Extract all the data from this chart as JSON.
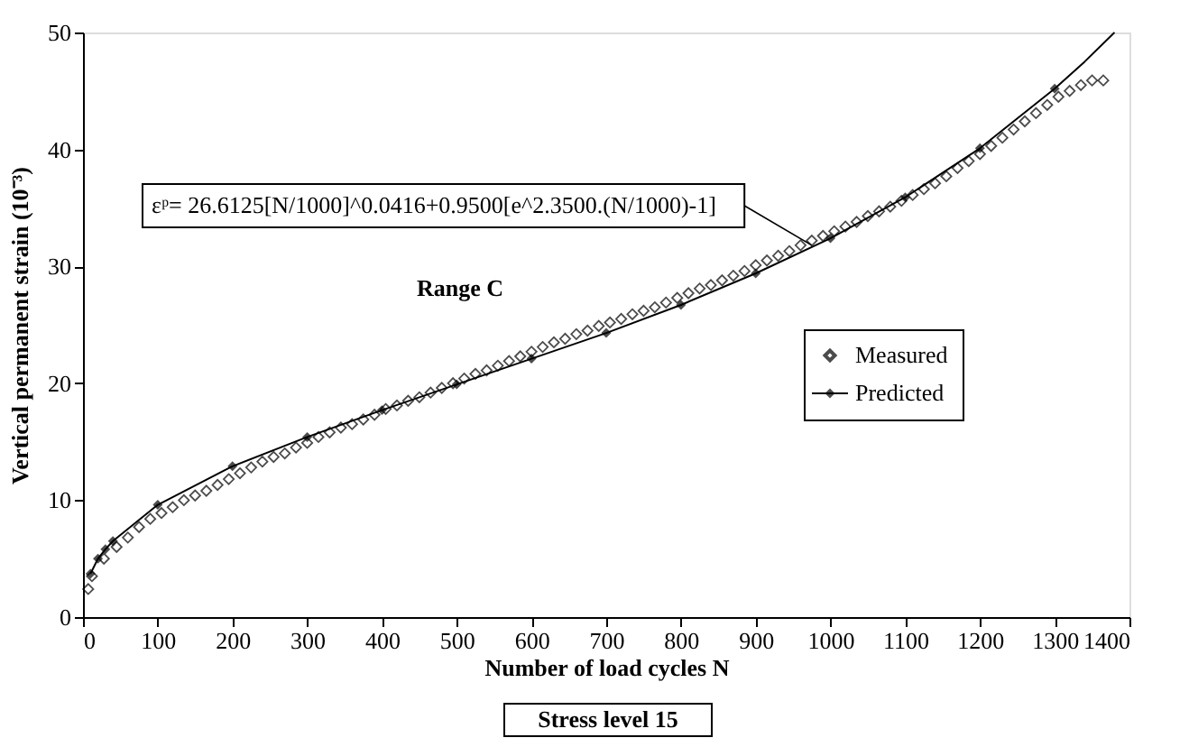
{
  "chart_data": {
    "type": "scatter",
    "xlabel": "Number of load cycles N",
    "ylabel": "Vertical permanent strain (10⁻³)",
    "xlim": [
      0,
      1400
    ],
    "xticks": [
      0,
      100,
      200,
      300,
      400,
      500,
      600,
      700,
      800,
      900,
      1000,
      1100,
      1200,
      1300,
      1400
    ],
    "ylim": [
      0,
      50
    ],
    "yticks": [
      0,
      10,
      20,
      30,
      40,
      50
    ],
    "grid": false,
    "legend": "right",
    "series": [
      {
        "name": "Measured",
        "marker": "diamond",
        "color": "#000000",
        "x": [
          7,
          12,
          28,
          45,
          60,
          75,
          90,
          105,
          120,
          135,
          150,
          165,
          180,
          195,
          210,
          225,
          240,
          255,
          270,
          285,
          300,
          315,
          330,
          345,
          360,
          375,
          390,
          405,
          420,
          435,
          450,
          465,
          480,
          495,
          510,
          525,
          540,
          555,
          570,
          585,
          600,
          615,
          630,
          645,
          660,
          675,
          690,
          705,
          720,
          735,
          750,
          765,
          780,
          795,
          810,
          825,
          840,
          855,
          870,
          885,
          900,
          915,
          930,
          945,
          960,
          975,
          990,
          1005,
          1020,
          1035,
          1050,
          1065,
          1080,
          1095,
          1110,
          1125,
          1140,
          1155,
          1170,
          1185,
          1200,
          1215,
          1230,
          1245,
          1260,
          1275,
          1290,
          1305,
          1320,
          1335,
          1350,
          1365
        ],
        "values": [
          2.4,
          3.5,
          5.0,
          6.0,
          6.8,
          7.7,
          8.4,
          8.9,
          9.4,
          10.0,
          10.4,
          10.8,
          11.3,
          11.8,
          12.3,
          12.8,
          13.3,
          13.7,
          14.0,
          14.5,
          14.9,
          15.4,
          15.8,
          16.2,
          16.5,
          16.9,
          17.3,
          17.8,
          18.1,
          18.5,
          18.8,
          19.2,
          19.6,
          20.0,
          20.4,
          20.8,
          21.1,
          21.5,
          21.9,
          22.3,
          22.7,
          23.1,
          23.5,
          23.8,
          24.2,
          24.5,
          24.9,
          25.2,
          25.5,
          25.9,
          26.2,
          26.5,
          26.9,
          27.3,
          27.7,
          28.1,
          28.4,
          28.8,
          29.2,
          29.6,
          30.1,
          30.5,
          30.9,
          31.3,
          31.8,
          32.2,
          32.6,
          33.0,
          33.4,
          33.8,
          34.3,
          34.7,
          35.1,
          35.6,
          36.1,
          36.6,
          37.1,
          37.7,
          38.4,
          39.0,
          39.6,
          40.3,
          41.0,
          41.7,
          42.4,
          43.1,
          43.8,
          44.5,
          45.0,
          45.5,
          45.9,
          45.9
        ]
      },
      {
        "name": "Predicted",
        "type": "line",
        "marker": "diamond",
        "color": "#000000",
        "x": [
          10,
          20,
          30,
          40,
          100,
          200,
          300,
          400,
          500,
          600,
          700,
          800,
          900,
          1000,
          1100,
          1200,
          1300
        ],
        "values": [
          3.7,
          5.0,
          5.8,
          6.5,
          9.6,
          12.9,
          15.4,
          17.7,
          19.9,
          22.1,
          24.3,
          26.7,
          29.4,
          32.4,
          35.9,
          40.1,
          45.2
        ]
      },
      {
        "type": "line",
        "marker": "none",
        "color": "#000000",
        "x": [
          1300,
          1340,
          1380
        ],
        "values": [
          45.2,
          47.5,
          50
        ]
      }
    ],
    "annotations": [
      {
        "text": "εᵖ= 26.6125[N/1000]^0.0416+0.9500[e^2.3500.(N/1000)-1]",
        "x": 975,
        "y": 31.8
      },
      "Range C",
      "Stress level 15"
    ]
  }
}
